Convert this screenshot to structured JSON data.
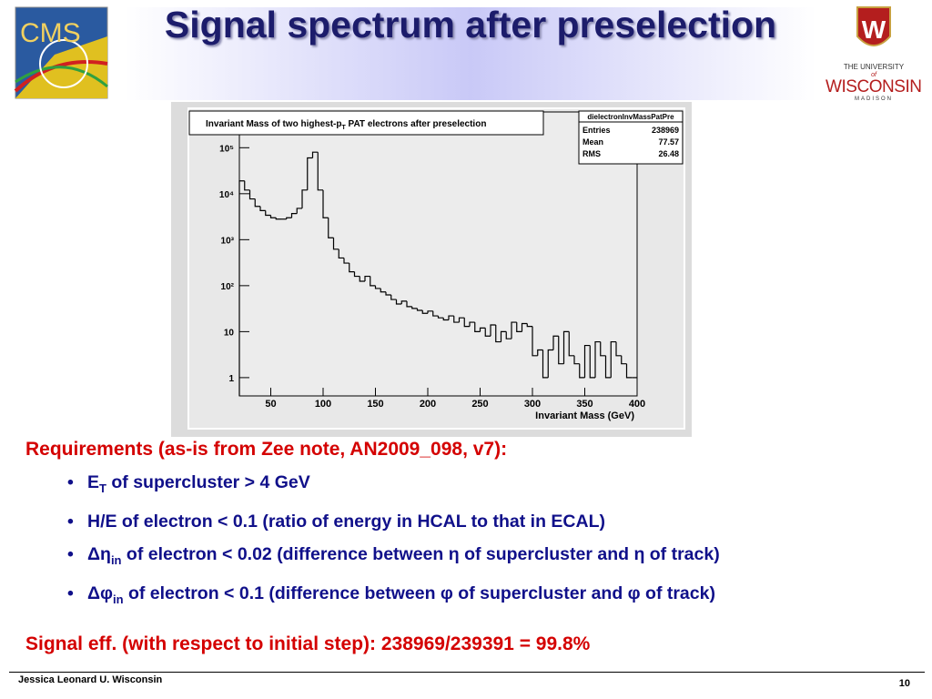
{
  "header": {
    "title": "Signal spectrum after preselection"
  },
  "logos": {
    "cms": "CMS",
    "university": {
      "line1": "THE UNIVERSITY",
      "of": "of",
      "name": "WISCONSIN",
      "city": "MADISON"
    }
  },
  "chart_data": {
    "type": "histogram",
    "title": [
      "Invariant Mass of two highest-p",
      "T",
      " PAT electrons after preselection"
    ],
    "stats": {
      "name": "dielectronInvMassPatPre",
      "rows": [
        [
          "Entries",
          238969
        ],
        [
          "Mean",
          77.57
        ],
        [
          "RMS",
          26.48
        ]
      ]
    },
    "xlabel": "Invariant Mass (GeV)",
    "bins": [
      20,
      25,
      30,
      35,
      40,
      45,
      50,
      55,
      60,
      65,
      70,
      75,
      80,
      85,
      90,
      95,
      100,
      105,
      110,
      115,
      120,
      125,
      130,
      135,
      140,
      145,
      150,
      155,
      160,
      165,
      170,
      175,
      180,
      185,
      190,
      195,
      200,
      205,
      210,
      215,
      220,
      225,
      230,
      235,
      240,
      245,
      250,
      255,
      260,
      265,
      270,
      275,
      280,
      285,
      290,
      295,
      300,
      305,
      310,
      315,
      320,
      325,
      330,
      335,
      340,
      345,
      350,
      355,
      360,
      365,
      370,
      375,
      380,
      385,
      390,
      395,
      400
    ],
    "values": [
      19000,
      12000,
      7700,
      5300,
      4300,
      3400,
      3000,
      2800,
      2800,
      3000,
      3700,
      4800,
      12000,
      60000,
      80000,
      12000,
      3000,
      1100,
      620,
      400,
      310,
      200,
      160,
      125,
      160,
      100,
      87,
      73,
      63,
      50,
      40,
      46,
      35,
      32,
      29,
      25,
      28,
      22,
      20,
      18,
      22,
      16,
      20,
      13,
      16,
      10,
      12,
      8,
      14,
      6,
      10,
      7,
      16,
      10,
      15,
      13,
      3,
      4,
      1,
      4,
      8,
      2,
      10,
      3,
      2,
      1,
      5,
      1,
      6,
      3,
      1,
      6,
      3,
      2,
      1,
      1
    ],
    "color": "#000000",
    "xlim": [
      20,
      400
    ],
    "xticks": [
      50,
      100,
      150,
      200,
      250,
      300,
      350,
      400
    ],
    "ylim": [
      0.4,
      600000
    ],
    "log_y": true,
    "yticks": [
      1,
      10,
      {
        "value": 100,
        "label": "10²"
      },
      {
        "value": 1000,
        "label": "10³"
      },
      {
        "value": 10000,
        "label": "10⁴"
      },
      {
        "value": 100000,
        "label": "10⁵"
      }
    ]
  },
  "requirements": {
    "heading": "Requirements (as-is from Zee note, AN2009_098, v7):",
    "bullets": [
      [
        "E",
        "T",
        " of supercluster > 4 GeV"
      ],
      [
        "H/E of electron < 0.1 (ratio of energy in HCAL to that in ECAL)"
      ],
      [
        "Δη",
        "in",
        " of electron < 0.02 (difference between η of supercluster and η of track)"
      ],
      [
        "Δφ",
        "in",
        " of electron < 0.1 (difference between φ of supercluster and φ of track)"
      ]
    ]
  },
  "summary": "Signal eff. (with respect to initial step): 238969/239391 = 99.8%",
  "footer": {
    "author": "Jessica Leonard U. Wisconsin",
    "page": "10"
  }
}
